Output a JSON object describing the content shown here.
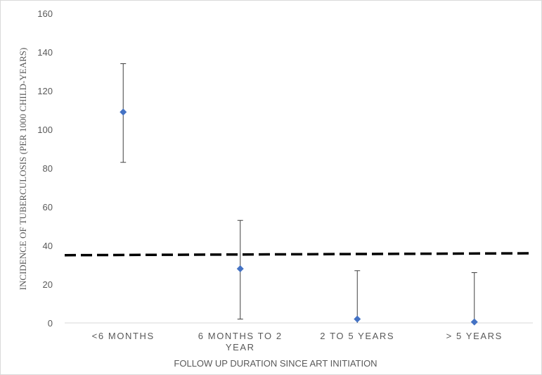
{
  "chart_data": {
    "type": "scatter",
    "title": "",
    "xlabel": "FOLLOW UP DURATION SINCE ART INITIATION",
    "ylabel": "INCIDENCE OF TUBERCULOSIS (PER 1000 CHILD-YEARS)",
    "ylim": [
      0,
      160
    ],
    "yticks": [
      "0",
      "20",
      "40",
      "60",
      "80",
      "100",
      "120",
      "140",
      "160"
    ],
    "grid": false,
    "legend": "none",
    "categories": [
      [
        "<6 MONTHS"
      ],
      [
        "6 MONTHS TO  2",
        "YEAR"
      ],
      [
        "2 TO 5 YEARS"
      ],
      [
        "> 5 YEARS"
      ]
    ],
    "series": [
      {
        "values": [
          109,
          28,
          2,
          0.5
        ],
        "error_low": [
          83,
          2,
          0,
          0
        ],
        "error_high": [
          134,
          53,
          27,
          26
        ]
      }
    ],
    "reference_line": {
      "start": 35,
      "end": 36,
      "style": "dashed"
    },
    "colors": {
      "marker": "#4472c4",
      "error_bar": "#404040",
      "reference_line": "#000000",
      "axis": "#d9d9d9"
    }
  }
}
